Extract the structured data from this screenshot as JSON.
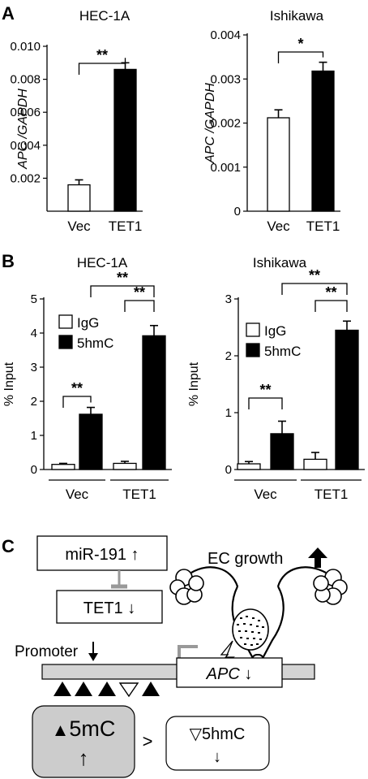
{
  "panels": {
    "a": "A",
    "b": "B",
    "c": "C"
  },
  "chart_data": [
    {
      "id": "a-hec1a",
      "type": "bar",
      "title": "HEC-1A",
      "ylabel_parts": [
        "APC",
        " /",
        "GAPDH"
      ],
      "categories": [
        "Vec",
        "TET1"
      ],
      "values": [
        0.0016,
        0.0086
      ],
      "errors": [
        0.0003,
        0.0004
      ],
      "bar_colors": [
        "#ffffff",
        "#000000"
      ],
      "ylim": [
        0,
        0.01
      ],
      "yticks": [
        0.002,
        0.004,
        0.006,
        0.008,
        0.01
      ],
      "ytick_labels": [
        "0.002",
        "0.004",
        "0.006",
        "0.008",
        "0.010"
      ],
      "significance": [
        {
          "from": 0,
          "to": 1,
          "label": "**"
        }
      ]
    },
    {
      "id": "a-ishikawa",
      "type": "bar",
      "title": "Ishikawa",
      "ylabel_parts": [
        "APC",
        " /",
        "GAPDH"
      ],
      "categories": [
        "Vec",
        "TET1"
      ],
      "values": [
        0.00212,
        0.00318
      ],
      "errors": [
        0.00018,
        0.0002
      ],
      "bar_colors": [
        "#ffffff",
        "#000000"
      ],
      "ylim": [
        0,
        0.004
      ],
      "yticks": [
        0,
        0.001,
        0.002,
        0.003,
        0.004
      ],
      "ytick_labels": [
        "0",
        "0.001",
        "0.002",
        "0.003",
        "0.004"
      ],
      "significance": [
        {
          "from": 0,
          "to": 1,
          "label": "*"
        }
      ]
    },
    {
      "id": "b-hec1a",
      "type": "bar",
      "title": "HEC-1A",
      "ylabel": "% Input",
      "groups": [
        "Vec",
        "TET1"
      ],
      "series": [
        {
          "name": "IgG",
          "color": "#ffffff",
          "values": [
            0.15,
            0.18
          ],
          "errors": [
            0.03,
            0.06
          ]
        },
        {
          "name": "5hmC",
          "color": "#000000",
          "values": [
            1.62,
            3.92
          ],
          "errors": [
            0.2,
            0.3
          ]
        }
      ],
      "ylim": [
        0,
        5
      ],
      "yticks": [
        0,
        1,
        2,
        3,
        4,
        5
      ],
      "ytick_labels": [
        "0",
        "1",
        "2",
        "3",
        "4",
        "5"
      ],
      "significance": [
        {
          "from": [
            0,
            0
          ],
          "to": [
            0,
            1
          ],
          "label": "**"
        },
        {
          "from": [
            1,
            0
          ],
          "to": [
            1,
            1
          ],
          "label": "**"
        },
        {
          "from": [
            0,
            1
          ],
          "to": [
            1,
            1
          ],
          "label": "**"
        }
      ]
    },
    {
      "id": "b-ishikawa",
      "type": "bar",
      "title": "Ishikawa",
      "ylabel": "% Input",
      "groups": [
        "Vec",
        "TET1"
      ],
      "series": [
        {
          "name": "IgG",
          "color": "#ffffff",
          "values": [
            0.1,
            0.18
          ],
          "errors": [
            0.04,
            0.12
          ]
        },
        {
          "name": "5hmC",
          "color": "#000000",
          "values": [
            0.63,
            2.45
          ],
          "errors": [
            0.22,
            0.16
          ]
        }
      ],
      "ylim": [
        0,
        3
      ],
      "yticks": [
        0,
        1,
        2,
        3
      ],
      "ytick_labels": [
        "0",
        "1",
        "2",
        "3"
      ],
      "significance": [
        {
          "from": [
            0,
            0
          ],
          "to": [
            0,
            1
          ],
          "label": "**"
        },
        {
          "from": [
            1,
            0
          ],
          "to": [
            1,
            1
          ],
          "label": "**"
        },
        {
          "from": [
            0,
            1
          ],
          "to": [
            1,
            1
          ],
          "label": "**"
        }
      ]
    }
  ],
  "diagram": {
    "mir_box": "miR-191 ↑",
    "tet1_box": "TET1 ↓",
    "ec_growth": "EC growth",
    "promoter": "Promoter",
    "apc_gene": "APC",
    "apc_arrow": " ↓",
    "fivemc_symbol": "▲",
    "fivemc_label": "5mC",
    "fivemc_arrow": "↑",
    "greater_than": ">",
    "fivehmc_symbol": "▽",
    "fivehmc_label": "5hmC",
    "fivehmc_arrow": "↓"
  }
}
